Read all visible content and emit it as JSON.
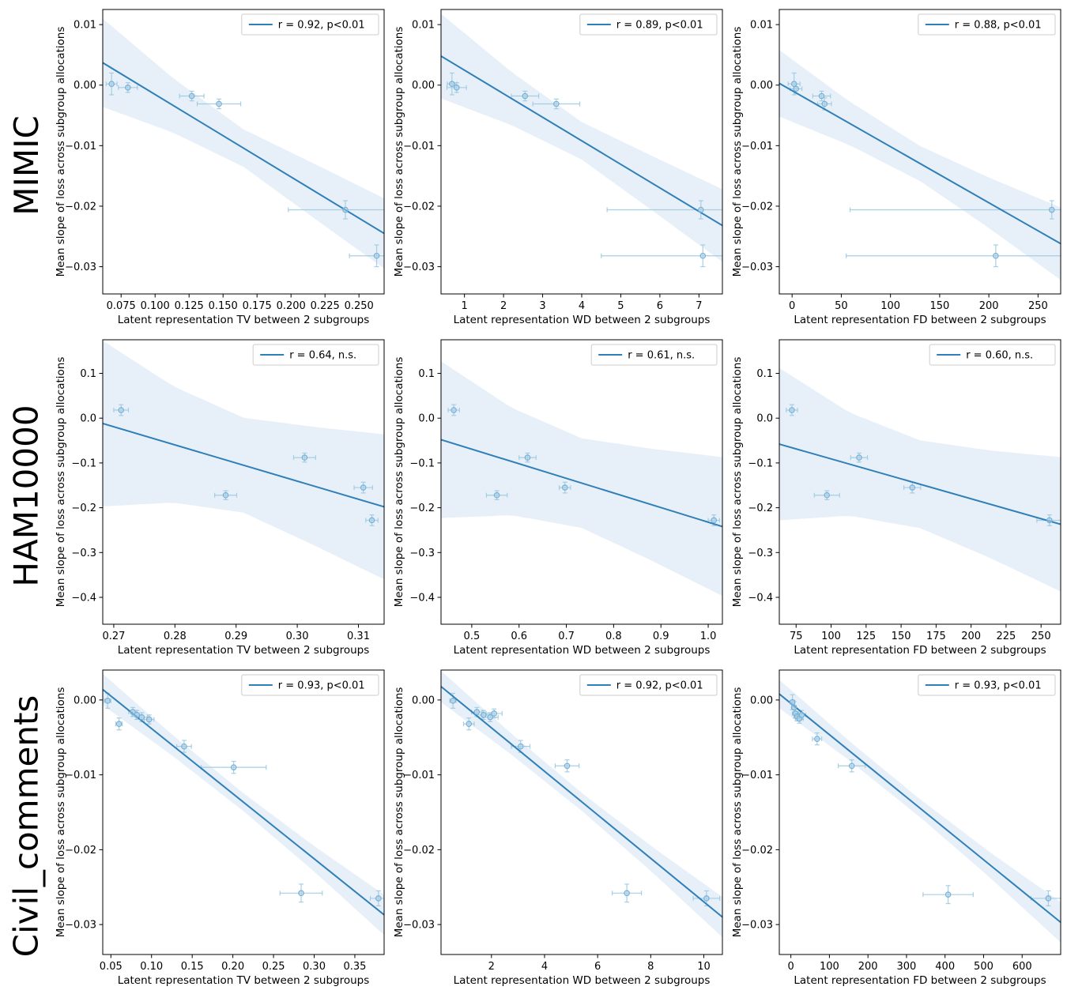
{
  "figure": {
    "rows": [
      {
        "label": "MIMIC"
      },
      {
        "label": "HAM10000"
      },
      {
        "label": "Civil_comments"
      }
    ]
  },
  "colors": {
    "line": "#2f7fb8",
    "band": "rgba(66,136,198,0.13)",
    "errorbar": "#9ecae1",
    "marker_edge": "#7ab0d4",
    "marker_fill": "rgba(173,210,235,0.5)",
    "axis": "#000000",
    "legend_border": "#cccccc"
  },
  "chart_data": [
    {
      "type": "scatter",
      "row": "MIMIC",
      "legend": "r = 0.92, p<0.01",
      "xlabel": "Latent representation TV between 2 subgroups",
      "ylabel": "Mean slope of loss across subgroup allocations",
      "xlim": [
        0.0615,
        0.2685
      ],
      "ylim": [
        -0.0345,
        0.0125
      ],
      "xticks": [
        0.075,
        0.1,
        0.125,
        0.15,
        0.175,
        0.2,
        0.225,
        0.25
      ],
      "xtick_labels": [
        "0.075",
        "0.100",
        "0.125",
        "0.150",
        "0.175",
        "0.200",
        "0.225",
        "0.250"
      ],
      "yticks": [
        0.01,
        0.0,
        -0.01,
        -0.02,
        -0.03
      ],
      "ytick_labels": [
        "0.01",
        "0.00",
        "−0.01",
        "−0.02",
        "−0.03"
      ],
      "regression_line": {
        "x0": 0.0615,
        "y0": 0.0037,
        "x1": 0.2685,
        "y1": -0.0245
      },
      "band_margins": [
        0.0073,
        0.0045,
        0.0031,
        0.0045,
        0.0058
      ],
      "points": [
        {
          "x": 0.068,
          "y": 0.0002,
          "xerr": 0.004,
          "yerr": 0.0018
        },
        {
          "x": 0.08,
          "y": -0.0004,
          "xerr": 0.007,
          "yerr": 0.0008
        },
        {
          "x": 0.127,
          "y": -0.0018,
          "xerr": 0.009,
          "yerr": 0.0008
        },
        {
          "x": 0.147,
          "y": -0.0031,
          "xerr": 0.016,
          "yerr": 0.0008
        },
        {
          "x": 0.24,
          "y": -0.0206,
          "xerr": 0.042,
          "yerr": 0.0015
        },
        {
          "x": 0.263,
          "y": -0.0282,
          "xerr": 0.02,
          "yerr": 0.0018
        }
      ]
    },
    {
      "type": "scatter",
      "row": "MIMIC",
      "legend": "r = 0.89, p<0.01",
      "xlabel": "Latent representation WD between 2 subgroups",
      "ylabel": "Mean slope of loss across subgroup allocations",
      "xlim": [
        0.4,
        7.6
      ],
      "ylim": [
        -0.0345,
        0.0125
      ],
      "xticks": [
        1,
        2,
        3,
        4,
        5,
        6,
        7
      ],
      "xtick_labels": [
        "1",
        "2",
        "3",
        "4",
        "5",
        "6",
        "7"
      ],
      "yticks": [
        0.01,
        0.0,
        -0.01,
        -0.02,
        -0.03
      ],
      "ytick_labels": [
        "0.01",
        "0.00",
        "−0.01",
        "−0.02",
        "−0.03"
      ],
      "regression_line": {
        "x0": 0.4,
        "y0": 0.0048,
        "x1": 7.6,
        "y1": -0.0232
      },
      "band_margins": [
        0.007,
        0.0044,
        0.0031,
        0.0045,
        0.006
      ],
      "points": [
        {
          "x": 0.68,
          "y": 0.0002,
          "xerr": 0.12,
          "yerr": 0.0018
        },
        {
          "x": 0.8,
          "y": -0.0004,
          "xerr": 0.25,
          "yerr": 0.0008
        },
        {
          "x": 2.55,
          "y": -0.0018,
          "xerr": 0.35,
          "yerr": 0.0008
        },
        {
          "x": 3.35,
          "y": -0.0031,
          "xerr": 0.6,
          "yerr": 0.0008
        },
        {
          "x": 7.05,
          "y": -0.0206,
          "xerr": 2.4,
          "yerr": 0.0015
        },
        {
          "x": 7.1,
          "y": -0.0282,
          "xerr": 2.6,
          "yerr": 0.0018
        }
      ]
    },
    {
      "type": "scatter",
      "row": "MIMIC",
      "legend": "r = 0.88, p<0.01",
      "xlabel": "Latent representation FD between 2 subgroups",
      "ylabel": "Mean slope of loss across subgroup allocations",
      "xlim": [
        -13,
        273
      ],
      "ylim": [
        -0.0345,
        0.0125
      ],
      "xticks": [
        0,
        50,
        100,
        150,
        200,
        250
      ],
      "xtick_labels": [
        "0",
        "50",
        "100",
        "150",
        "200",
        "250"
      ],
      "yticks": [
        0.01,
        0.0,
        -0.01,
        -0.02,
        -0.03
      ],
      "ytick_labels": [
        "0.01",
        "0.00",
        "−0.01",
        "−0.02",
        "−0.03"
      ],
      "regression_line": {
        "x0": -13,
        "y0": 0.0003,
        "x1": 273,
        "y1": -0.0262
      },
      "band_margins": [
        0.0055,
        0.0036,
        0.0029,
        0.0042,
        0.006
      ],
      "points": [
        {
          "x": 2,
          "y": 0.0002,
          "xerr": 6,
          "yerr": 0.0018
        },
        {
          "x": 4,
          "y": -0.0006,
          "xerr": 6,
          "yerr": 0.0008
        },
        {
          "x": 30,
          "y": -0.0018,
          "xerr": 9,
          "yerr": 0.0008
        },
        {
          "x": 33,
          "y": -0.0031,
          "xerr": 7,
          "yerr": 0.001
        },
        {
          "x": 264,
          "y": -0.0206,
          "xerr": 205,
          "yerr": 0.0015
        },
        {
          "x": 207,
          "y": -0.0282,
          "xerr": 152,
          "yerr": 0.0018
        }
      ]
    },
    {
      "type": "scatter",
      "row": "HAM10000",
      "legend": "r = 0.64, n.s.",
      "xlabel": "Latent representation TV between 2 subgroups",
      "ylabel": "Mean slope of loss across subgroup allocations",
      "xlim": [
        0.2682,
        0.3142
      ],
      "ylim": [
        -0.46,
        0.175
      ],
      "xticks": [
        0.27,
        0.28,
        0.29,
        0.3,
        0.31
      ],
      "xtick_labels": [
        "0.27",
        "0.28",
        "0.29",
        "0.30",
        "0.31"
      ],
      "yticks": [
        0.1,
        0.0,
        -0.1,
        -0.2,
        -0.3,
        -0.4
      ],
      "ytick_labels": [
        "0.1",
        "0.0",
        "−0.1",
        "−0.2",
        "−0.3",
        "−0.4"
      ],
      "regression_line": {
        "x0": 0.2682,
        "y0": -0.012,
        "x1": 0.3142,
        "y1": -0.198
      },
      "band_margins": [
        0.185,
        0.13,
        0.106,
        0.132,
        0.162
      ],
      "points": [
        {
          "x": 0.2712,
          "y": 0.018,
          "xerr": 0.0012,
          "yerr": 0.012
        },
        {
          "x": 0.2883,
          "y": -0.172,
          "xerr": 0.0018,
          "yerr": 0.01
        },
        {
          "x": 0.3012,
          "y": -0.088,
          "xerr": 0.0018,
          "yerr": 0.01
        },
        {
          "x": 0.3108,
          "y": -0.155,
          "xerr": 0.0015,
          "yerr": 0.012
        },
        {
          "x": 0.3122,
          "y": -0.228,
          "xerr": 0.001,
          "yerr": 0.012
        }
      ]
    },
    {
      "type": "scatter",
      "row": "HAM10000",
      "legend": "r = 0.61, n.s.",
      "xlabel": "Latent representation WD between 2 subgroups",
      "ylabel": "Mean slope of loss across subgroup allocations",
      "xlim": [
        0.435,
        1.03
      ],
      "ylim": [
        -0.46,
        0.175
      ],
      "xticks": [
        0.5,
        0.6,
        0.7,
        0.8,
        0.9,
        1.0
      ],
      "xtick_labels": [
        "0.5",
        "0.6",
        "0.7",
        "0.8",
        "0.9",
        "1.0"
      ],
      "yticks": [
        0.1,
        0.0,
        -0.1,
        -0.2,
        -0.3,
        -0.4
      ],
      "ytick_labels": [
        "0.1",
        "0.0",
        "−0.1",
        "−0.2",
        "−0.3",
        "−0.4"
      ],
      "regression_line": {
        "x0": 0.435,
        "y0": -0.048,
        "x1": 1.03,
        "y1": -0.242
      },
      "band_margins": [
        0.175,
        0.12,
        0.1,
        0.125,
        0.155
      ],
      "points": [
        {
          "x": 0.462,
          "y": 0.018,
          "xerr": 0.012,
          "yerr": 0.012
        },
        {
          "x": 0.553,
          "y": -0.172,
          "xerr": 0.022,
          "yerr": 0.01
        },
        {
          "x": 0.618,
          "y": -0.088,
          "xerr": 0.018,
          "yerr": 0.01
        },
        {
          "x": 0.697,
          "y": -0.155,
          "xerr": 0.012,
          "yerr": 0.012
        },
        {
          "x": 1.012,
          "y": -0.228,
          "xerr": 0.012,
          "yerr": 0.012
        }
      ]
    },
    {
      "type": "scatter",
      "row": "HAM10000",
      "legend": "r = 0.60, n.s.",
      "xlabel": "Latent representation FD between 2 subgroups",
      "ylabel": "Mean slope of loss across subgroup allocations",
      "xlim": [
        63,
        264
      ],
      "ylim": [
        -0.46,
        0.175
      ],
      "xticks": [
        75,
        100,
        125,
        150,
        175,
        200,
        225,
        250
      ],
      "xtick_labels": [
        "75",
        "100",
        "125",
        "150",
        "175",
        "200",
        "225",
        "250"
      ],
      "yticks": [
        0.1,
        0.0,
        -0.1,
        -0.2,
        -0.3,
        -0.4
      ],
      "ytick_labels": [
        "0.1",
        "0.0",
        "−0.1",
        "−0.2",
        "−0.3",
        "−0.4"
      ],
      "regression_line": {
        "x0": 63,
        "y0": -0.058,
        "x1": 264,
        "y1": -0.237
      },
      "band_margins": [
        0.17,
        0.115,
        0.098,
        0.12,
        0.15
      ],
      "points": [
        {
          "x": 72,
          "y": 0.018,
          "xerr": 4,
          "yerr": 0.012
        },
        {
          "x": 97,
          "y": -0.172,
          "xerr": 9,
          "yerr": 0.01
        },
        {
          "x": 120,
          "y": -0.088,
          "xerr": 6,
          "yerr": 0.01
        },
        {
          "x": 158,
          "y": -0.155,
          "xerr": 6,
          "yerr": 0.012
        },
        {
          "x": 256,
          "y": -0.228,
          "xerr": 9,
          "yerr": 0.012
        }
      ]
    },
    {
      "type": "scatter",
      "row": "Civil_comments",
      "legend": "r = 0.93, p<0.01",
      "xlabel": "Latent representation TV between 2 subgroups",
      "ylabel": "Mean slope of loss across subgroup allocations",
      "xlim": [
        0.04,
        0.386
      ],
      "ylim": [
        -0.034,
        0.004
      ],
      "xticks": [
        0.05,
        0.1,
        0.15,
        0.2,
        0.25,
        0.3,
        0.35
      ],
      "xtick_labels": [
        "0.05",
        "0.10",
        "0.15",
        "0.20",
        "0.25",
        "0.30",
        "0.35"
      ],
      "yticks": [
        0.0,
        -0.01,
        -0.02,
        -0.03
      ],
      "ytick_labels": [
        "0.00",
        "−0.01",
        "−0.02",
        "−0.03"
      ],
      "regression_line": {
        "x0": 0.04,
        "y0": 0.0014,
        "x1": 0.386,
        "y1": -0.0287
      },
      "band_margins": [
        0.0021,
        0.0014,
        0.0012,
        0.0017,
        0.0027
      ],
      "points": [
        {
          "x": 0.046,
          "y": -0.0001,
          "xerr": 0.004,
          "yerr": 0.001
        },
        {
          "x": 0.06,
          "y": -0.0032,
          "xerr": 0.004,
          "yerr": 0.0008
        },
        {
          "x": 0.077,
          "y": -0.0016,
          "xerr": 0.005,
          "yerr": 0.0006
        },
        {
          "x": 0.082,
          "y": -0.002,
          "xerr": 0.006,
          "yerr": 0.0006
        },
        {
          "x": 0.088,
          "y": -0.0023,
          "xerr": 0.007,
          "yerr": 0.0006
        },
        {
          "x": 0.097,
          "y": -0.0026,
          "xerr": 0.006,
          "yerr": 0.0006
        },
        {
          "x": 0.14,
          "y": -0.0062,
          "xerr": 0.009,
          "yerr": 0.0008
        },
        {
          "x": 0.201,
          "y": -0.009,
          "xerr": 0.04,
          "yerr": 0.0008
        },
        {
          "x": 0.284,
          "y": -0.0258,
          "xerr": 0.026,
          "yerr": 0.0012
        },
        {
          "x": 0.379,
          "y": -0.0265,
          "xerr": 0.01,
          "yerr": 0.001
        }
      ]
    },
    {
      "type": "scatter",
      "row": "Civil_comments",
      "legend": "r = 0.92, p<0.01",
      "xlabel": "Latent representation WD between 2 subgroups",
      "ylabel": "Mean slope of loss across subgroup allocations",
      "xlim": [
        0.1,
        10.7
      ],
      "ylim": [
        -0.034,
        0.004
      ],
      "xticks": [
        2,
        4,
        6,
        8,
        10
      ],
      "xtick_labels": [
        "2",
        "4",
        "6",
        "8",
        "10"
      ],
      "yticks": [
        0.0,
        -0.01,
        -0.02,
        -0.03
      ],
      "ytick_labels": [
        "0.00",
        "−0.01",
        "−0.02",
        "−0.03"
      ],
      "regression_line": {
        "x0": 0.1,
        "y0": 0.0018,
        "x1": 10.7,
        "y1": -0.029
      },
      "band_margins": [
        0.0021,
        0.0014,
        0.0012,
        0.0017,
        0.0027
      ],
      "points": [
        {
          "x": 0.55,
          "y": -0.0001,
          "xerr": 0.12,
          "yerr": 0.001
        },
        {
          "x": 1.15,
          "y": -0.0032,
          "xerr": 0.2,
          "yerr": 0.0008
        },
        {
          "x": 1.45,
          "y": -0.0016,
          "xerr": 0.2,
          "yerr": 0.0006
        },
        {
          "x": 1.7,
          "y": -0.002,
          "xerr": 0.25,
          "yerr": 0.0006
        },
        {
          "x": 1.95,
          "y": -0.0023,
          "xerr": 0.3,
          "yerr": 0.0006
        },
        {
          "x": 2.1,
          "y": -0.0018,
          "xerr": 0.3,
          "yerr": 0.0006
        },
        {
          "x": 3.1,
          "y": -0.0062,
          "xerr": 0.35,
          "yerr": 0.0008
        },
        {
          "x": 4.85,
          "y": -0.0088,
          "xerr": 0.45,
          "yerr": 0.0008
        },
        {
          "x": 7.1,
          "y": -0.0258,
          "xerr": 0.55,
          "yerr": 0.0012
        },
        {
          "x": 10.1,
          "y": -0.0265,
          "xerr": 0.5,
          "yerr": 0.001
        }
      ]
    },
    {
      "type": "scatter",
      "row": "Civil_comments",
      "legend": "r = 0.93, p<0.01",
      "xlabel": "Latent representation FD between 2 subgroups",
      "ylabel": "Mean slope of loss across subgroup allocations",
      "xlim": [
        -30,
        700
      ],
      "ylim": [
        -0.034,
        0.004
      ],
      "xticks": [
        0,
        100,
        200,
        300,
        400,
        500,
        600
      ],
      "xtick_labels": [
        "0",
        "100",
        "200",
        "300",
        "400",
        "500",
        "600"
      ],
      "yticks": [
        0.0,
        -0.01,
        -0.02,
        -0.03
      ],
      "ytick_labels": [
        "0.00",
        "−0.01",
        "−0.02",
        "−0.03"
      ],
      "regression_line": {
        "x0": -30,
        "y0": 0.0008,
        "x1": 700,
        "y1": -0.0297
      },
      "band_margins": [
        0.0019,
        0.0013,
        0.0012,
        0.0017,
        0.0027
      ],
      "points": [
        {
          "x": 4,
          "y": -0.0003,
          "xerr": 6,
          "yerr": 0.001
        },
        {
          "x": 8,
          "y": -0.001,
          "xerr": 6,
          "yerr": 0.0008
        },
        {
          "x": 12,
          "y": -0.0018,
          "xerr": 8,
          "yerr": 0.0006
        },
        {
          "x": 16,
          "y": -0.0022,
          "xerr": 8,
          "yerr": 0.0006
        },
        {
          "x": 22,
          "y": -0.0025,
          "xerr": 10,
          "yerr": 0.0006
        },
        {
          "x": 28,
          "y": -0.002,
          "xerr": 10,
          "yerr": 0.0006
        },
        {
          "x": 68,
          "y": -0.0052,
          "xerr": 12,
          "yerr": 0.0008
        },
        {
          "x": 158,
          "y": -0.0088,
          "xerr": 35,
          "yerr": 0.0008
        },
        {
          "x": 408,
          "y": -0.026,
          "xerr": 65,
          "yerr": 0.0012
        },
        {
          "x": 668,
          "y": -0.0265,
          "xerr": 45,
          "yerr": 0.001
        }
      ]
    }
  ]
}
